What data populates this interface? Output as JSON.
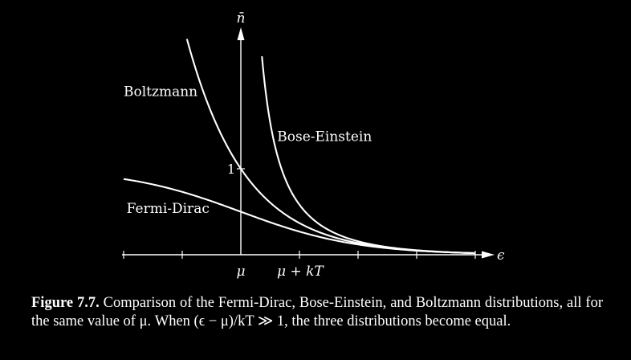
{
  "chart_data": {
    "type": "line",
    "xlabel": "ϵ",
    "ylabel": "n̄",
    "xlim": [
      -2,
      4
    ],
    "ylim": [
      0,
      2.6
    ],
    "x_ticks": [
      -2,
      -1,
      0,
      1,
      2,
      3,
      4
    ],
    "x_tick_labels": [
      {
        "x": 0,
        "text": "μ"
      },
      {
        "x": 1,
        "text": "μ + kT"
      }
    ],
    "y_ticks": [
      1
    ],
    "y_tick_labels": [
      {
        "y": 1,
        "text": "1"
      }
    ],
    "grid": false,
    "legend": "none",
    "series": [
      {
        "name": "Boltzmann",
        "formula": "exp(-x)",
        "x_range": [
          -0.92,
          4.0
        ],
        "label_at": {
          "x": -2.0,
          "y": 1.9
        }
      },
      {
        "name": "Bose-Einstein",
        "formula": "1/(exp(x)-1)",
        "x_range": [
          0.36,
          4.0
        ],
        "label_at": {
          "x": 0.62,
          "y": 1.38
        }
      },
      {
        "name": "Fermi-Dirac",
        "formula": "1/(exp(x)+1)",
        "x_range": [
          -2.0,
          4.0
        ],
        "label_at": {
          "x": -1.95,
          "y": 0.54
        }
      }
    ]
  },
  "caption": {
    "label": "Figure 7.7.",
    "text": "Comparison of the Fermi-Dirac, Bose-Einstein, and Boltzmann distributions, all for the same value of μ. When (ϵ − μ)/kT ≫ 1, the three distributions become equal."
  }
}
